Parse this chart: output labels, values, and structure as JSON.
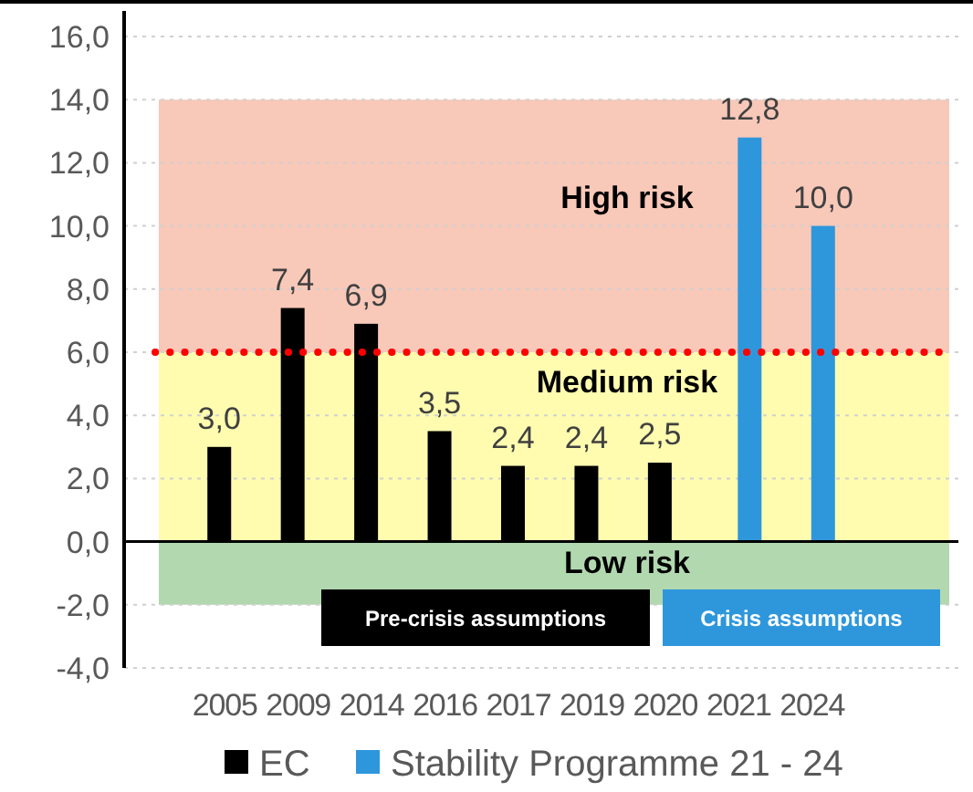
{
  "chart_data": {
    "type": "bar",
    "categories": [
      "2005",
      "2009",
      "2014",
      "2016",
      "2017",
      "2019",
      "2020",
      "2021",
      "2024"
    ],
    "series": [
      {
        "name": "EC",
        "color": "#000000",
        "values": [
          3.0,
          7.4,
          6.9,
          3.5,
          2.4,
          2.4,
          2.5,
          null,
          null
        ],
        "value_labels": [
          "3,0",
          "7,4",
          "6,9",
          "3,5",
          "2,4",
          "2,4",
          "2,5",
          null,
          null
        ]
      },
      {
        "name": "Stability Programme 21 - 24",
        "color": "#2e97dc",
        "values": [
          null,
          null,
          null,
          null,
          null,
          null,
          null,
          12.8,
          10.0
        ],
        "value_labels": [
          null,
          null,
          null,
          null,
          null,
          null,
          null,
          "12,8",
          "10,0"
        ]
      }
    ],
    "ylim": [
      -4,
      16
    ],
    "yticks": [
      {
        "value": -4,
        "label": "-4,0"
      },
      {
        "value": -2,
        "label": "-2,0"
      },
      {
        "value": 0,
        "label": "0,0"
      },
      {
        "value": 2,
        "label": "2,0"
      },
      {
        "value": 4,
        "label": "4,0"
      },
      {
        "value": 6,
        "label": "6,0"
      },
      {
        "value": 8,
        "label": "8,0"
      },
      {
        "value": 10,
        "label": "10,0"
      },
      {
        "value": 12,
        "label": "12,0"
      },
      {
        "value": 14,
        "label": "14,0"
      },
      {
        "value": 16,
        "label": "16,0"
      }
    ],
    "grid": "y",
    "legend": "bottom",
    "bands": [
      {
        "axis": "y",
        "from": 6,
        "to": 14,
        "label": "High risk",
        "color": "#f8c8b8"
      },
      {
        "axis": "y",
        "from": 0,
        "to": 6,
        "label": "Medium risk",
        "color": "#fffcb0"
      },
      {
        "axis": "y",
        "from": -2,
        "to": 0,
        "label": "Low risk",
        "color": "#b2d8b0"
      }
    ],
    "ref_lines": [
      {
        "axis": "y",
        "value": 6,
        "color": "#ff0000",
        "line_style": "dotted"
      }
    ],
    "annotations": [
      "Pre-crisis assumptions",
      "Crisis assumptions"
    ]
  }
}
